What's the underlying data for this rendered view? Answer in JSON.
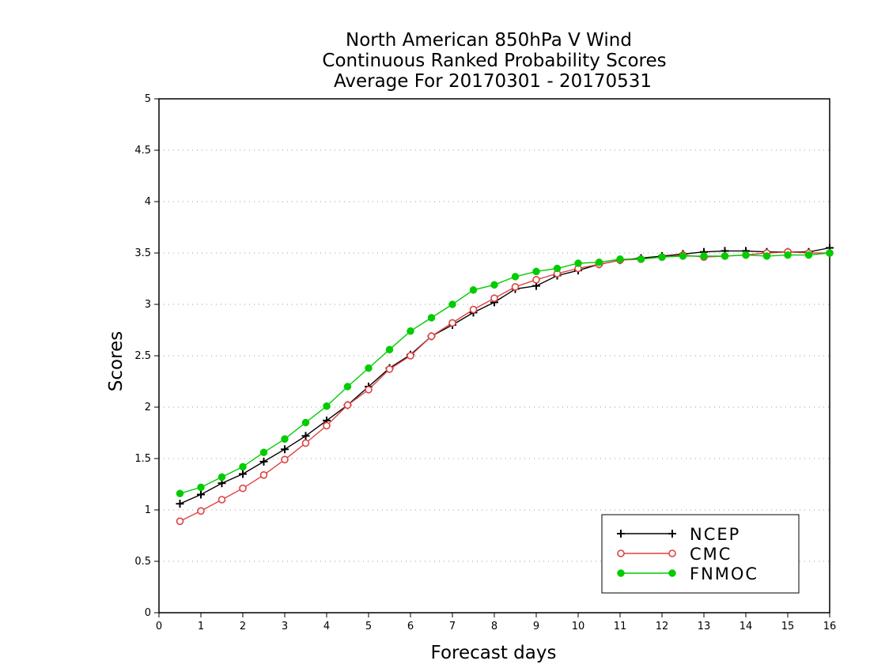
{
  "chart_data": {
    "type": "line",
    "title": [
      "North American 850hPa V Wind",
      "Continuous Ranked Probability Scores",
      "Average For 20170301 - 20170531"
    ],
    "xlabel": "Forecast days",
    "ylabel": "Scores",
    "xlim": [
      0,
      16
    ],
    "ylim": [
      0,
      5
    ],
    "xticks": [
      "0",
      "1",
      "2",
      "3",
      "4",
      "5",
      "6",
      "7",
      "8",
      "9",
      "10",
      "11",
      "12",
      "13",
      "14",
      "15",
      "16"
    ],
    "yticks": [
      "0",
      "0.5",
      "1",
      "1.5",
      "2",
      "2.5",
      "3",
      "3.5",
      "4",
      "4.5",
      "5"
    ],
    "grid": "horizontal-dotted",
    "legend_position": "bottom-right",
    "x": [
      0.5,
      1,
      1.5,
      2,
      2.5,
      3,
      3.5,
      4,
      4.5,
      5,
      5.5,
      6,
      6.5,
      7,
      7.5,
      8,
      8.5,
      9,
      9.5,
      10,
      10.5,
      11,
      11.5,
      12,
      12.5,
      13,
      13.5,
      14,
      14.5,
      15,
      15.5,
      16
    ],
    "series": [
      {
        "name": "NCEP",
        "color": "#000000",
        "marker": "plus",
        "values": [
          1.06,
          1.15,
          1.26,
          1.35,
          1.47,
          1.59,
          1.72,
          1.87,
          2.02,
          2.2,
          2.38,
          2.51,
          2.69,
          2.8,
          2.92,
          3.02,
          3.15,
          3.18,
          3.28,
          3.33,
          3.39,
          3.43,
          3.45,
          3.47,
          3.49,
          3.51,
          3.52,
          3.52,
          3.51,
          3.51,
          3.51,
          3.55
        ]
      },
      {
        "name": "CMC",
        "color": "#e04040",
        "marker": "open-circle",
        "values": [
          0.89,
          0.99,
          1.1,
          1.21,
          1.34,
          1.49,
          1.65,
          1.82,
          2.02,
          2.17,
          2.37,
          2.5,
          2.69,
          2.82,
          2.95,
          3.06,
          3.17,
          3.24,
          3.3,
          3.35,
          3.39,
          3.43,
          3.44,
          3.46,
          3.48,
          3.46,
          3.47,
          3.48,
          3.5,
          3.51,
          3.5,
          3.5
        ]
      },
      {
        "name": "FNMOC",
        "color": "#00cc00",
        "marker": "filled-circle",
        "values": [
          1.16,
          1.22,
          1.32,
          1.42,
          1.56,
          1.69,
          1.85,
          2.01,
          2.2,
          2.38,
          2.56,
          2.74,
          2.87,
          3.0,
          3.14,
          3.19,
          3.27,
          3.32,
          3.35,
          3.4,
          3.41,
          3.44,
          3.44,
          3.46,
          3.47,
          3.47,
          3.47,
          3.48,
          3.47,
          3.48,
          3.48,
          3.5
        ]
      }
    ]
  }
}
